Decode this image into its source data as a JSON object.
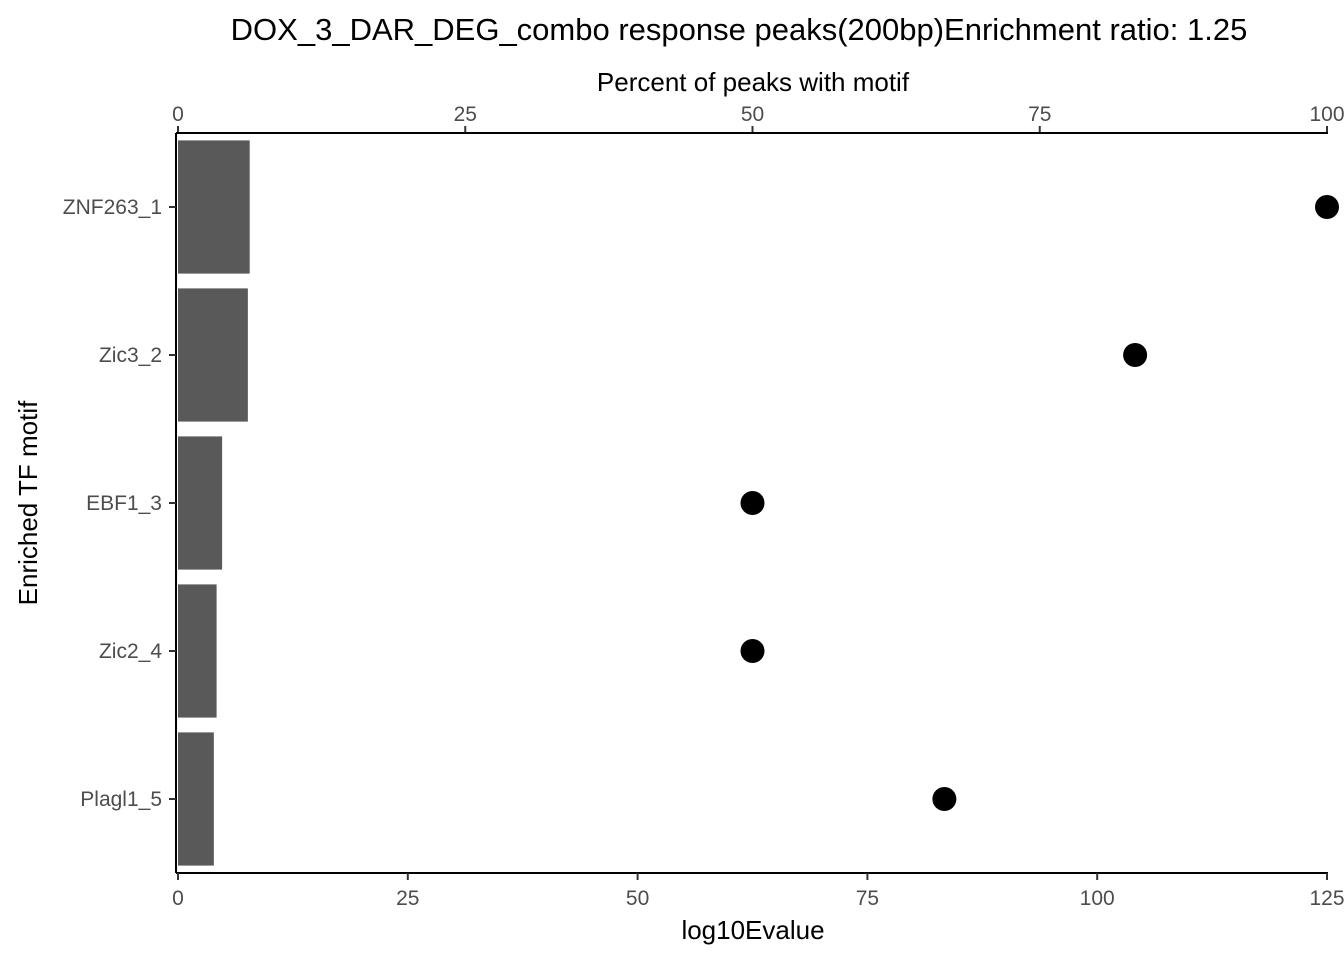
{
  "chart_data": {
    "type": "bar",
    "title": "DOX_3_DAR_DEG_combo response peaks(200bp)Enrichment ratio: 1.25",
    "xlabel": "log10Evalue",
    "ylabel": "Enriched TF motif",
    "x2label": "Percent of peaks with motif",
    "categories": [
      "ZNF263_1",
      "Zic3_2",
      "EBF1_3",
      "Zic2_4",
      "Plagl1_5"
    ],
    "xlim": [
      0,
      125
    ],
    "x2lim": [
      0,
      100
    ],
    "x_ticks": [
      "0",
      "25",
      "50",
      "75",
      "100",
      "125"
    ],
    "x2_ticks": [
      "0",
      "25",
      "50",
      "75",
      "100"
    ],
    "series": [
      {
        "mark": "bar",
        "axis": "bottom",
        "values": [
          7.8,
          7.6,
          4.8,
          4.2,
          3.9
        ]
      },
      {
        "mark": "point",
        "axis": "top",
        "values": [
          100,
          83.3,
          50,
          50,
          66.7
        ]
      }
    ],
    "colors": {
      "bar": "#595959",
      "point": "#000000"
    },
    "grid": false
  }
}
